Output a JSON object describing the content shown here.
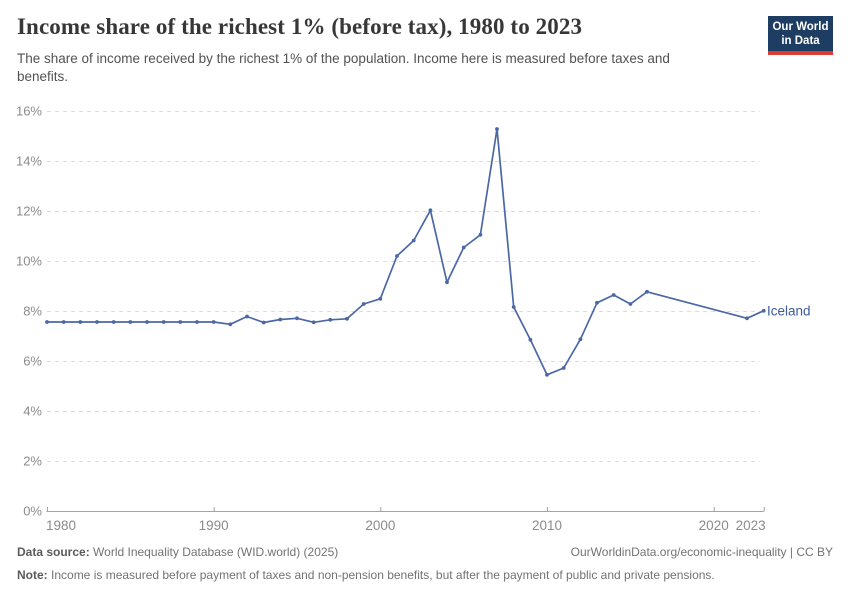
{
  "header": {
    "title": "Income share of the richest 1% (before tax), 1980 to 2023",
    "subtitle": "The share of income received by the richest 1% of the population. Income here is measured before taxes and benefits.",
    "logo": {
      "line1": "Our World",
      "line2": "in Data",
      "bg_color": "#1d3d63",
      "accent_color": "#dc3d33"
    }
  },
  "chart_data": {
    "type": "line",
    "title": "Income share of the richest 1% (before tax), 1980 to 2023",
    "xlabel": "",
    "ylabel": "",
    "xlim": [
      1980,
      2023
    ],
    "ylim": [
      0,
      16
    ],
    "x_ticks": [
      1980,
      1990,
      2000,
      2010,
      2020,
      2023
    ],
    "y_ticks": [
      0,
      2,
      4,
      6,
      8,
      10,
      12,
      14,
      16
    ],
    "y_tick_suffix": "%",
    "grid": "horizontal-dashed",
    "legend": "entity-label-at-line-end",
    "colors": {
      "line": "#4b68a5",
      "entity_label": "#3d5c9e",
      "gridline": "#dcdcdc",
      "axis": "#a3a3a3",
      "tick_text": "#8b8b8b"
    },
    "series": [
      {
        "name": "Iceland",
        "points": [
          [
            1980,
            7.56
          ],
          [
            1981,
            7.56
          ],
          [
            1982,
            7.56
          ],
          [
            1983,
            7.56
          ],
          [
            1984,
            7.56
          ],
          [
            1985,
            7.56
          ],
          [
            1986,
            7.56
          ],
          [
            1987,
            7.56
          ],
          [
            1988,
            7.56
          ],
          [
            1989,
            7.56
          ],
          [
            1990,
            7.56
          ],
          [
            1991,
            7.47
          ],
          [
            1992,
            7.78
          ],
          [
            1993,
            7.54
          ],
          [
            1994,
            7.66
          ],
          [
            1995,
            7.71
          ],
          [
            1996,
            7.55
          ],
          [
            1997,
            7.65
          ],
          [
            1998,
            7.69
          ],
          [
            1999,
            8.28
          ],
          [
            2000,
            8.49
          ],
          [
            2001,
            10.2
          ],
          [
            2002,
            10.82
          ],
          [
            2003,
            12.03
          ],
          [
            2004,
            9.15
          ],
          [
            2005,
            10.54
          ],
          [
            2006,
            11.05
          ],
          [
            2007,
            15.28
          ],
          [
            2008,
            8.16
          ],
          [
            2009,
            6.85
          ],
          [
            2010,
            5.45
          ],
          [
            2011,
            5.72
          ],
          [
            2012,
            6.87
          ],
          [
            2013,
            8.33
          ],
          [
            2014,
            8.64
          ],
          [
            2015,
            8.28
          ],
          [
            2016,
            8.77
          ],
          [
            2022,
            7.71
          ],
          [
            2023,
            8.01
          ]
        ]
      }
    ]
  },
  "footer": {
    "data_source_label": "Data source:",
    "data_source_value": " World Inequality Database (WID.world) (2025)",
    "link": "OurWorldinData.org/economic-inequality | CC BY",
    "note_label": "Note:",
    "note_value": " Income is measured before payment of taxes and non-pension benefits, but after the payment of public and private pensions."
  }
}
